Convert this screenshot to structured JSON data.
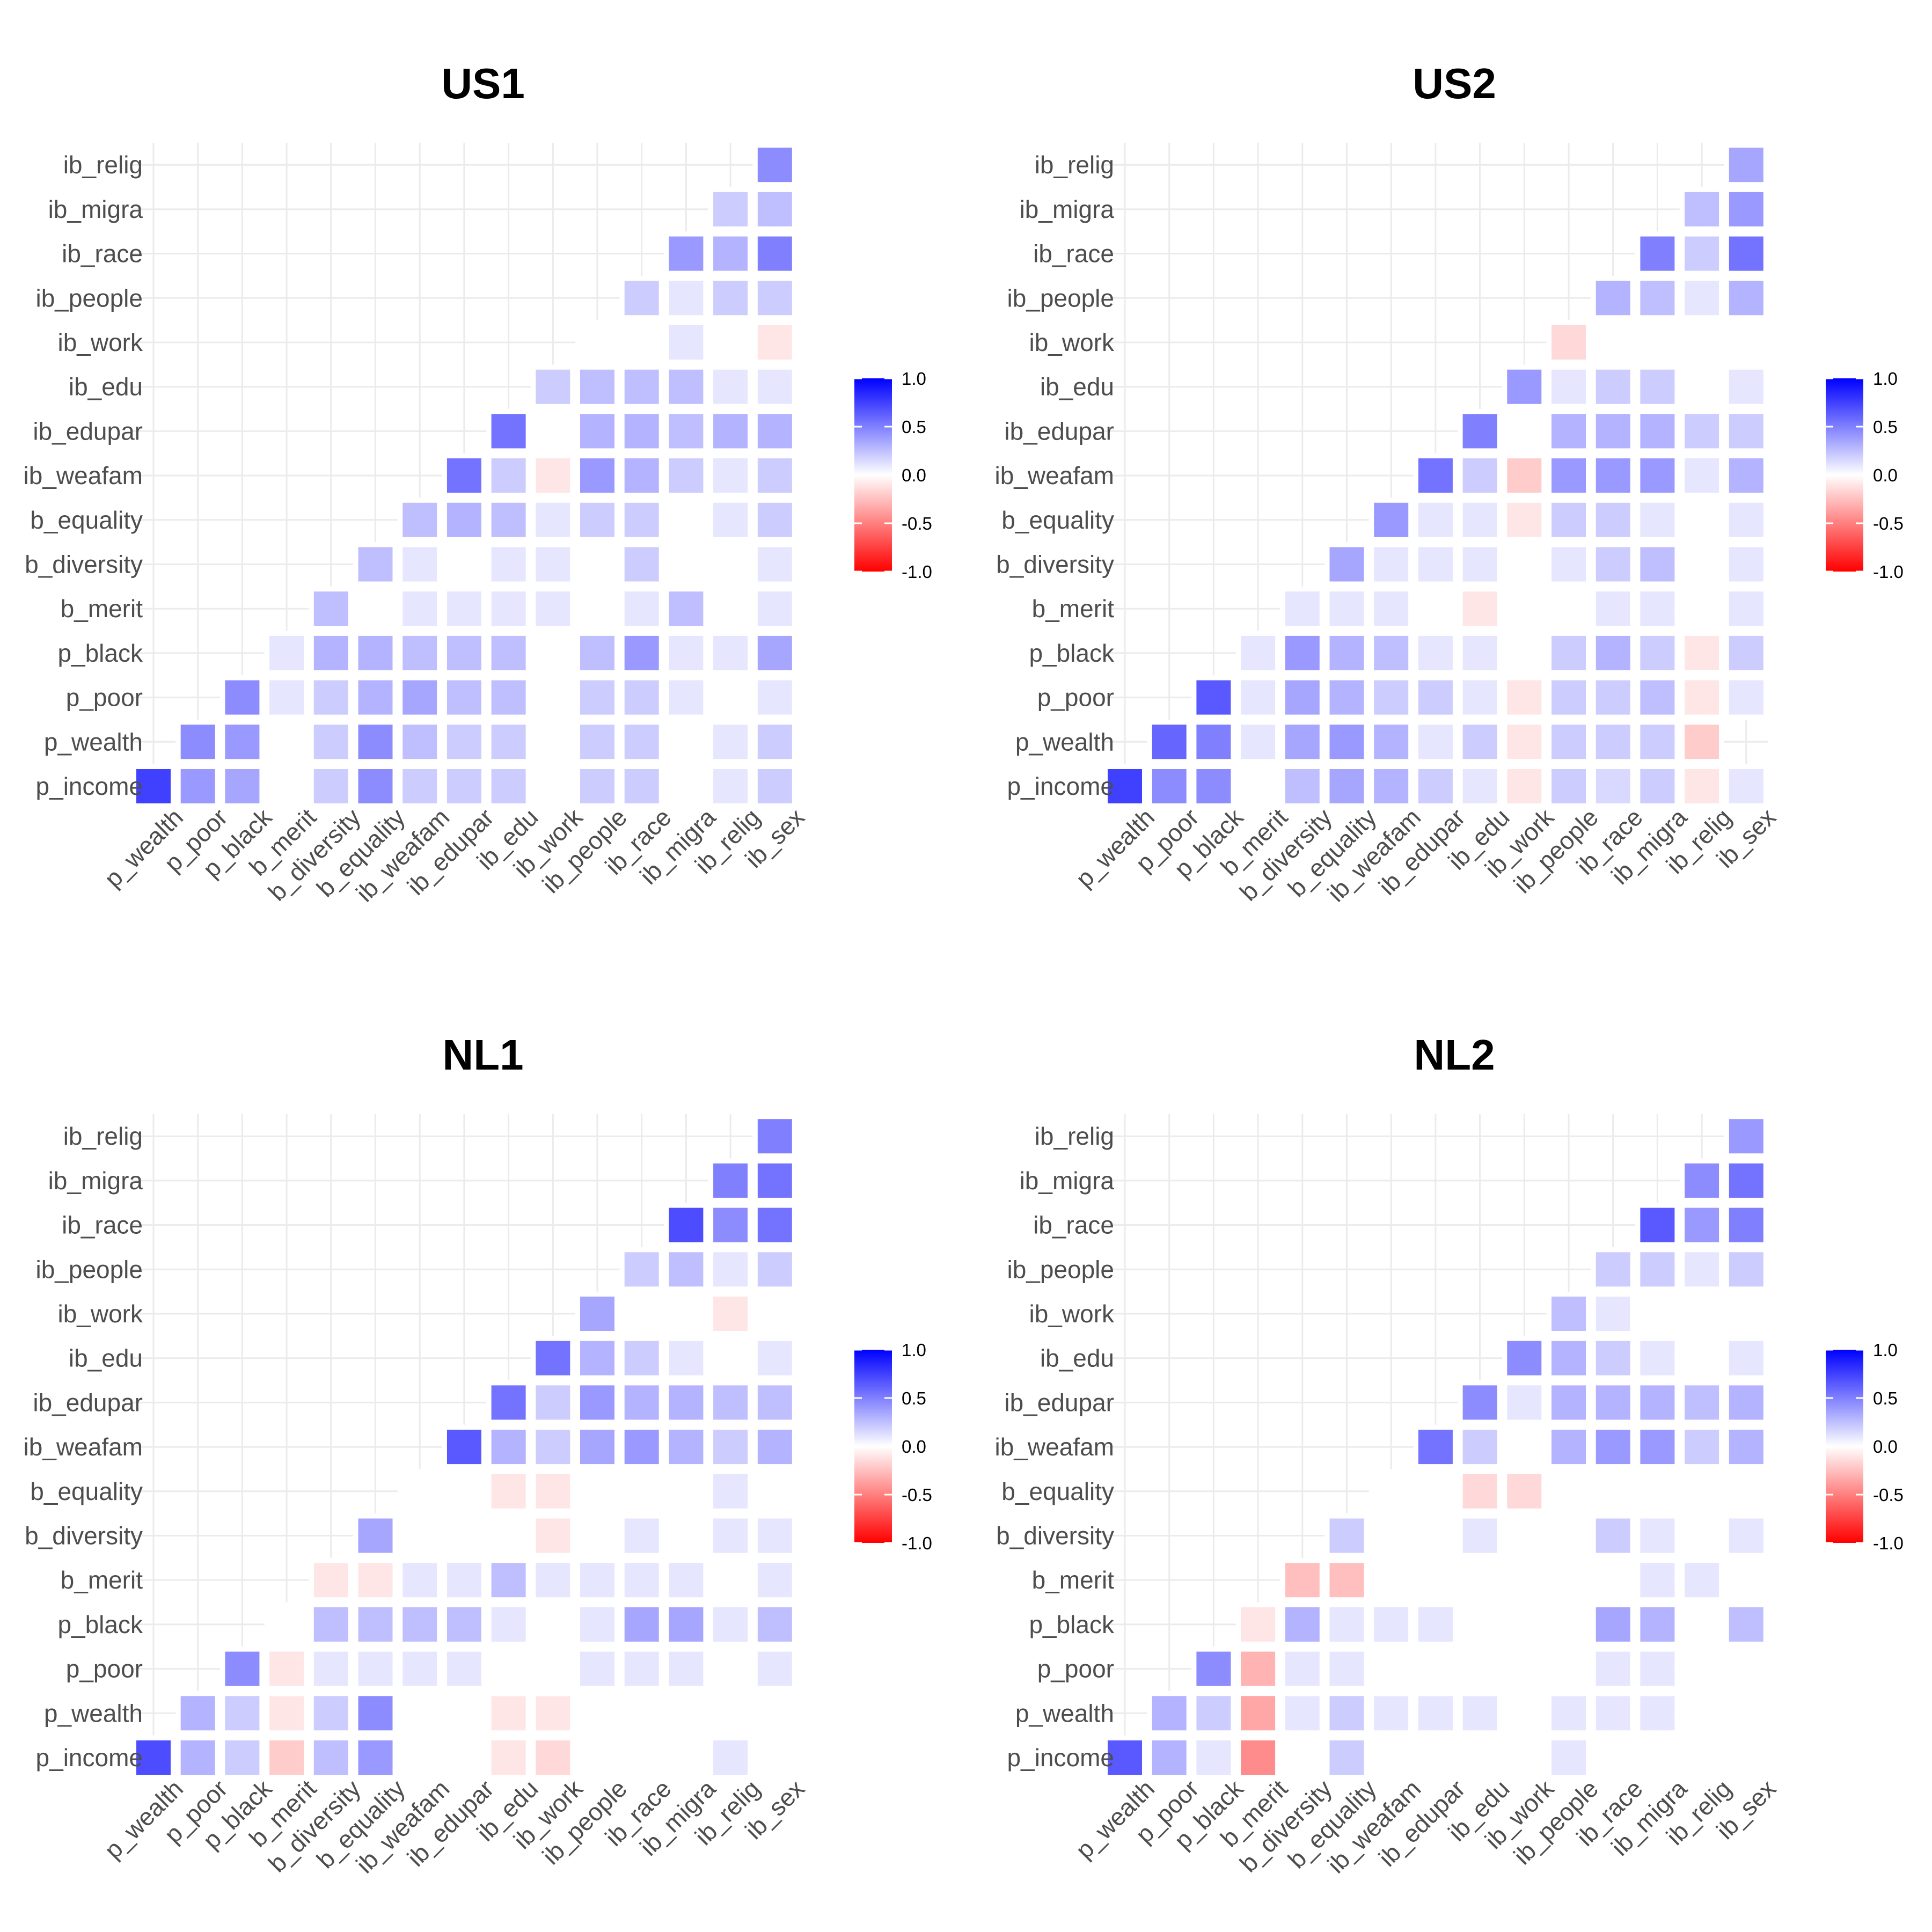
{
  "chart_data": [
    {
      "type": "heatmap",
      "title": "US1",
      "variables": [
        "p_income",
        "p_wealth",
        "p_poor",
        "p_black",
        "b_merit",
        "b_diversity",
        "b_equality",
        "ib_weafam",
        "ib_edupar",
        "ib_edu",
        "ib_work",
        "ib_people",
        "ib_race",
        "ib_migra",
        "ib_relig",
        "ib_sex"
      ],
      "x_tick_labels": [
        "p_wealth",
        "p_poor",
        "p_black",
        "b_merit",
        "b_diversity",
        "b_equality",
        "ib_weafam",
        "ib_edupar",
        "ib_edu",
        "ib_work",
        "ib_people",
        "ib_race",
        "ib_migra",
        "ib_relig",
        "ib_sex"
      ],
      "y_tick_labels": [
        "p_income",
        "p_wealth",
        "p_poor",
        "p_black",
        "b_merit",
        "b_diversity",
        "b_equality",
        "ib_weafam",
        "ib_edupar",
        "ib_edu",
        "ib_work",
        "ib_people",
        "ib_race",
        "ib_migra",
        "ib_relig"
      ],
      "color_scale": {
        "low": "#ff0000",
        "mid": "#ffffff",
        "high": "#0000ff",
        "limits": [
          -1,
          1
        ],
        "breaks": [
          "1.0",
          "0.5",
          "0.0",
          "-0.5",
          "-1.0"
        ]
      },
      "grid": true,
      "legend_position": "right",
      "values": [
        [
          0.75,
          0.4,
          0.35,
          null,
          0.2,
          0.45,
          0.2,
          0.2,
          0.2,
          null,
          0.2,
          0.2,
          null,
          0.1,
          0.2
        ],
        [
          0.45,
          0.4,
          null,
          0.2,
          0.45,
          0.25,
          0.2,
          0.2,
          null,
          0.2,
          0.2,
          null,
          0.1,
          0.2
        ],
        [
          0.45,
          0.1,
          0.2,
          0.3,
          0.35,
          0.25,
          0.25,
          null,
          0.2,
          0.2,
          0.1,
          null,
          0.1
        ],
        [
          0.1,
          0.3,
          0.3,
          0.25,
          0.25,
          0.25,
          null,
          0.25,
          0.4,
          0.1,
          0.1,
          0.35
        ],
        [
          0.25,
          null,
          0.1,
          0.1,
          0.1,
          0.1,
          null,
          0.1,
          0.25,
          null,
          0.1
        ],
        [
          0.25,
          0.1,
          null,
          0.1,
          0.1,
          null,
          0.2,
          null,
          null,
          0.1
        ],
        [
          0.25,
          0.3,
          0.25,
          0.1,
          0.2,
          0.2,
          null,
          0.1,
          0.2
        ],
        [
          0.55,
          0.2,
          -0.1,
          0.4,
          0.3,
          0.2,
          0.1,
          0.2
        ],
        [
          0.55,
          null,
          0.3,
          0.3,
          0.25,
          0.3,
          0.3
        ],
        [
          0.2,
          0.25,
          0.25,
          0.25,
          0.1,
          0.1
        ],
        [
          null,
          null,
          0.1,
          null,
          -0.1
        ],
        [
          0.2,
          0.1,
          0.2,
          0.2
        ],
        [
          0.4,
          0.3,
          0.5
        ],
        [
          0.2,
          0.25
        ],
        [
          0.45
        ]
      ]
    },
    {
      "type": "heatmap",
      "title": "US2",
      "variables": [
        "p_income",
        "p_wealth",
        "p_poor",
        "p_black",
        "b_merit",
        "b_diversity",
        "b_equality",
        "ib_weafam",
        "ib_edupar",
        "ib_edu",
        "ib_work",
        "ib_people",
        "ib_race",
        "ib_migra",
        "ib_relig",
        "ib_sex"
      ],
      "x_tick_labels": [
        "p_wealth",
        "p_poor",
        "p_black",
        "b_merit",
        "b_diversity",
        "b_equality",
        "ib_weafam",
        "ib_edupar",
        "ib_edu",
        "ib_work",
        "ib_people",
        "ib_race",
        "ib_migra",
        "ib_relig",
        "ib_sex"
      ],
      "y_tick_labels": [
        "p_income",
        "p_wealth",
        "p_poor",
        "p_black",
        "b_merit",
        "b_diversity",
        "b_equality",
        "ib_weafam",
        "ib_edupar",
        "ib_edu",
        "ib_work",
        "ib_people",
        "ib_race",
        "ib_migra",
        "ib_relig"
      ],
      "color_scale": {
        "low": "#ff0000",
        "mid": "#ffffff",
        "high": "#0000ff",
        "limits": [
          -1,
          1
        ],
        "breaks": [
          "1.0",
          "0.5",
          "0.0",
          "-0.5",
          "-1.0"
        ]
      },
      "grid": true,
      "legend_position": "right",
      "values": [
        [
          0.75,
          0.45,
          0.45,
          null,
          0.25,
          0.35,
          0.3,
          0.2,
          0.1,
          -0.1,
          0.2,
          0.15,
          0.2,
          -0.1,
          0.1
        ],
        [
          0.6,
          0.5,
          0.1,
          0.35,
          0.4,
          0.3,
          0.1,
          0.2,
          -0.1,
          0.2,
          0.2,
          0.2,
          -0.2
        ],
        [
          0.65,
          0.1,
          0.35,
          0.3,
          0.2,
          0.2,
          0.1,
          -0.1,
          0.2,
          0.2,
          0.25,
          -0.1,
          0.1
        ],
        [
          0.1,
          0.4,
          0.3,
          0.25,
          0.1,
          0.1,
          null,
          0.2,
          0.3,
          0.2,
          -0.1,
          0.2
        ],
        [
          0.1,
          0.1,
          0.1,
          null,
          -0.1,
          null,
          null,
          0.1,
          0.1,
          null,
          0.1
        ],
        [
          0.35,
          0.1,
          0.1,
          0.1,
          null,
          0.1,
          0.2,
          0.25,
          null,
          0.1
        ],
        [
          0.4,
          0.1,
          0.1,
          -0.1,
          0.2,
          0.2,
          0.1,
          null,
          0.1
        ],
        [
          0.55,
          0.2,
          -0.2,
          0.4,
          0.4,
          0.4,
          0.1,
          0.3
        ],
        [
          0.5,
          null,
          0.3,
          0.3,
          0.3,
          0.2,
          0.2
        ],
        [
          0.4,
          0.1,
          0.2,
          0.2,
          null,
          0.1
        ],
        [
          -0.15,
          null,
          null,
          null,
          null
        ],
        [
          0.3,
          0.25,
          0.1,
          0.3
        ],
        [
          0.5,
          0.2,
          0.55
        ],
        [
          0.25,
          0.4
        ],
        [
          0.35
        ]
      ]
    },
    {
      "type": "heatmap",
      "title": "NL1",
      "variables": [
        "p_income",
        "p_wealth",
        "p_poor",
        "p_black",
        "b_merit",
        "b_diversity",
        "b_equality",
        "ib_weafam",
        "ib_edupar",
        "ib_edu",
        "ib_work",
        "ib_people",
        "ib_race",
        "ib_migra",
        "ib_relig",
        "ib_sex"
      ],
      "x_tick_labels": [
        "p_wealth",
        "p_poor",
        "p_black",
        "b_merit",
        "b_diversity",
        "b_equality",
        "ib_weafam",
        "ib_edupar",
        "ib_edu",
        "ib_work",
        "ib_people",
        "ib_race",
        "ib_migra",
        "ib_relig",
        "ib_sex"
      ],
      "y_tick_labels": [
        "p_income",
        "p_wealth",
        "p_poor",
        "p_black",
        "b_merit",
        "b_diversity",
        "b_equality",
        "ib_weafam",
        "ib_edupar",
        "ib_edu",
        "ib_work",
        "ib_people",
        "ib_race",
        "ib_migra",
        "ib_relig"
      ],
      "color_scale": {
        "low": "#ff0000",
        "mid": "#ffffff",
        "high": "#0000ff",
        "limits": [
          -1,
          1
        ],
        "breaks": [
          "1.0",
          "0.5",
          "0.0",
          "-0.5",
          "-1.0"
        ]
      },
      "grid": true,
      "legend_position": "right",
      "values": [
        [
          0.7,
          0.3,
          0.2,
          -0.2,
          0.25,
          0.4,
          null,
          null,
          -0.1,
          -0.15,
          null,
          null,
          null,
          0.1,
          null
        ],
        [
          0.3,
          0.2,
          -0.1,
          0.2,
          0.45,
          null,
          null,
          -0.1,
          -0.1,
          null,
          null,
          null,
          null,
          null
        ],
        [
          0.45,
          -0.1,
          0.1,
          0.1,
          0.1,
          0.1,
          null,
          null,
          0.1,
          0.1,
          0.1,
          null,
          0.1
        ],
        [
          null,
          0.25,
          0.25,
          0.25,
          0.25,
          0.1,
          null,
          0.1,
          0.35,
          0.35,
          0.1,
          0.25
        ],
        [
          -0.1,
          -0.1,
          0.1,
          0.1,
          0.25,
          0.1,
          0.1,
          0.1,
          0.1,
          null,
          0.1
        ],
        [
          0.35,
          null,
          null,
          null,
          -0.1,
          null,
          0.1,
          null,
          0.1,
          0.1
        ],
        [
          null,
          null,
          -0.1,
          -0.1,
          null,
          null,
          null,
          0.1,
          null
        ],
        [
          0.65,
          0.3,
          0.2,
          0.35,
          0.4,
          0.3,
          0.2,
          0.3
        ],
        [
          0.55,
          0.2,
          0.4,
          0.3,
          0.3,
          0.25,
          0.25
        ],
        [
          0.55,
          0.3,
          0.2,
          0.1,
          null,
          0.1
        ],
        [
          0.35,
          null,
          null,
          -0.1,
          null
        ],
        [
          0.2,
          0.25,
          0.1,
          0.2
        ],
        [
          0.7,
          0.45,
          0.55
        ],
        [
          0.5,
          0.55
        ],
        [
          0.5
        ]
      ]
    },
    {
      "type": "heatmap",
      "title": "NL2",
      "variables": [
        "p_income",
        "p_wealth",
        "p_poor",
        "p_black",
        "b_merit",
        "b_diversity",
        "b_equality",
        "ib_weafam",
        "ib_edupar",
        "ib_edu",
        "ib_work",
        "ib_people",
        "ib_race",
        "ib_migra",
        "ib_relig",
        "ib_sex"
      ],
      "x_tick_labels": [
        "p_wealth",
        "p_poor",
        "p_black",
        "b_merit",
        "b_diversity",
        "b_equality",
        "ib_weafam",
        "ib_edupar",
        "ib_edu",
        "ib_work",
        "ib_people",
        "ib_race",
        "ib_migra",
        "ib_relig",
        "ib_sex"
      ],
      "y_tick_labels": [
        "p_income",
        "p_wealth",
        "p_poor",
        "p_black",
        "b_merit",
        "b_diversity",
        "b_equality",
        "ib_weafam",
        "ib_edupar",
        "ib_edu",
        "ib_work",
        "ib_people",
        "ib_race",
        "ib_migra",
        "ib_relig"
      ],
      "color_scale": {
        "low": "#ff0000",
        "mid": "#ffffff",
        "high": "#0000ff",
        "limits": [
          -1,
          1
        ],
        "breaks": [
          "1.0",
          "0.5",
          "0.0",
          "-0.5",
          "-1.0"
        ]
      },
      "grid": true,
      "legend_position": "right",
      "values": [
        [
          0.65,
          0.3,
          0.1,
          -0.45,
          null,
          0.2,
          null,
          null,
          null,
          null,
          0.1,
          null,
          null,
          null,
          null
        ],
        [
          0.3,
          0.2,
          -0.35,
          0.1,
          0.2,
          0.1,
          0.1,
          0.1,
          null,
          0.1,
          0.1,
          0.1,
          null,
          null
        ],
        [
          0.45,
          -0.3,
          0.1,
          0.1,
          null,
          null,
          null,
          null,
          null,
          0.1,
          0.1,
          null,
          null
        ],
        [
          -0.1,
          0.3,
          0.1,
          0.1,
          0.1,
          null,
          null,
          null,
          0.35,
          0.3,
          null,
          0.25
        ],
        [
          -0.25,
          -0.25,
          null,
          null,
          null,
          null,
          null,
          null,
          0.1,
          0.1,
          null
        ],
        [
          0.2,
          null,
          null,
          0.1,
          null,
          null,
          0.2,
          0.1,
          null,
          0.1
        ],
        [
          null,
          null,
          -0.15,
          -0.15,
          null,
          null,
          null,
          null,
          null
        ],
        [
          0.55,
          0.2,
          null,
          0.3,
          0.4,
          0.4,
          0.2,
          0.3
        ],
        [
          0.45,
          0.1,
          0.3,
          0.3,
          0.3,
          0.25,
          0.3
        ],
        [
          0.45,
          0.3,
          0.2,
          0.1,
          null,
          0.1
        ],
        [
          0.25,
          0.1,
          null,
          null,
          null
        ],
        [
          0.2,
          0.2,
          0.1,
          0.2
        ],
        [
          0.65,
          0.4,
          0.5
        ],
        [
          0.45,
          0.55
        ],
        [
          0.4
        ]
      ]
    }
  ]
}
